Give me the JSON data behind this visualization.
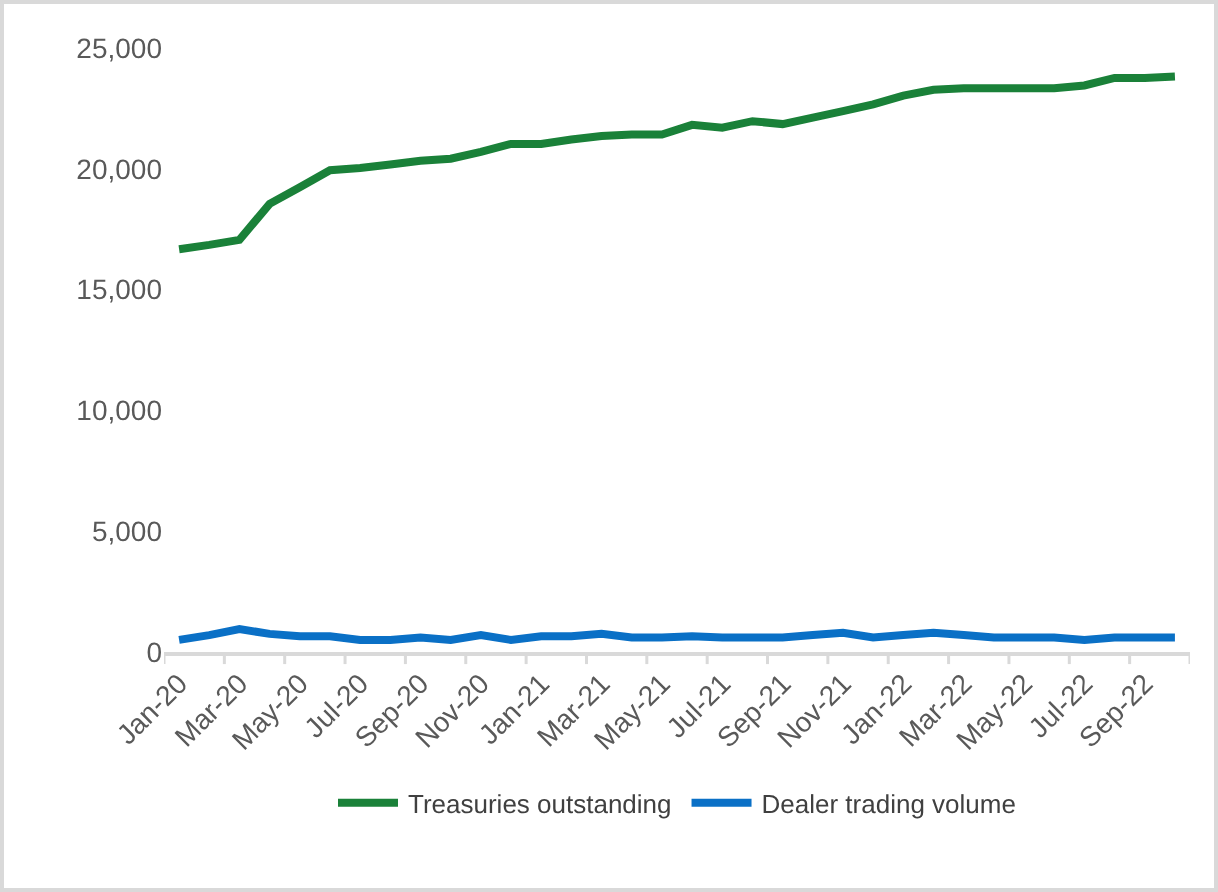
{
  "chart_data": {
    "type": "line",
    "categories": [
      "Jan-20",
      null,
      "Mar-20",
      null,
      "May-20",
      null,
      "Jul-20",
      null,
      "Sep-20",
      null,
      "Nov-20",
      null,
      "Jan-21",
      null,
      "Mar-21",
      null,
      "May-21",
      null,
      "Jul-21",
      null,
      "Sep-21",
      null,
      "Nov-21",
      null,
      "Jan-22",
      null,
      "Mar-22",
      null,
      "May-22",
      null,
      "Jul-22",
      null,
      "Sep-22",
      null
    ],
    "series": [
      {
        "name": "Treasuries outstanding",
        "color": "#1a8139",
        "values": [
          16670,
          16850,
          17060,
          18550,
          19240,
          19940,
          20030,
          20180,
          20330,
          20420,
          20700,
          21030,
          21030,
          21210,
          21360,
          21420,
          21420,
          21820,
          21700,
          21970,
          21850,
          22120,
          22390,
          22670,
          23030,
          23270,
          23330,
          23330,
          23330,
          23330,
          23450,
          23760,
          23760,
          23820
        ]
      },
      {
        "name": "Dealer trading volume",
        "color": "#0a70c6",
        "values": [
          500,
          700,
          950,
          750,
          650,
          650,
          500,
          500,
          600,
          500,
          700,
          500,
          650,
          650,
          750,
          600,
          600,
          650,
          600,
          600,
          600,
          700,
          800,
          600,
          700,
          800,
          700,
          600,
          600,
          600,
          500,
          600,
          600,
          600
        ]
      }
    ],
    "ylim": [
      0,
      25000
    ],
    "yticks": [
      {
        "value": 0,
        "label": "0"
      },
      {
        "value": 5000,
        "label": "5,000"
      },
      {
        "value": 10000,
        "label": "10,000"
      },
      {
        "value": 15000,
        "label": "15,000"
      },
      {
        "value": 20000,
        "label": "20,000"
      },
      {
        "value": 25000,
        "label": "25,000"
      }
    ],
    "grid": false,
    "legend": "bottom",
    "marker": "none",
    "line_style": "solid"
  }
}
